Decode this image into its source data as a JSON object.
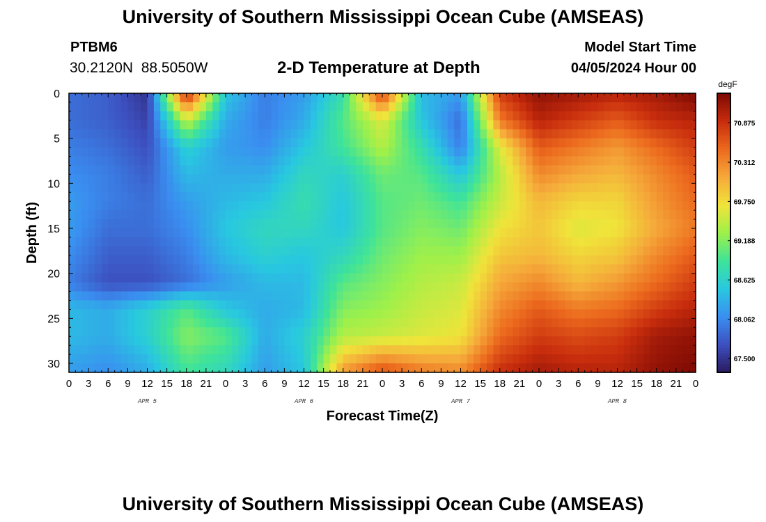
{
  "header": {
    "title": "University of Southern Mississippi Ocean Cube (AMSEAS)",
    "station_id": "PTBM6",
    "station_coords": "30.2120N  88.5050W",
    "plot_title": "2-D Temperature at Depth",
    "start_label": "Model Start Time",
    "start_value": "04/05/2024 Hour 00"
  },
  "footer": {
    "title": "University of Southern Mississippi Ocean Cube (AMSEAS)"
  },
  "chart_data": {
    "type": "heatmap",
    "title": "2-D Temperature at Depth",
    "xlabel": "Forecast Time(Z)",
    "ylabel": "Depth (ft)",
    "x_unit": "hours since 04/05/2024 Hour 00",
    "x_range": [
      0,
      96
    ],
    "y_range": [
      0,
      31
    ],
    "y_inverted": true,
    "x_ticks": [
      0,
      3,
      6,
      9,
      12,
      15,
      18,
      21,
      24,
      27,
      30,
      33,
      36,
      39,
      42,
      45,
      48,
      51,
      54,
      57,
      60,
      63,
      66,
      69,
      72,
      75,
      78,
      81,
      84,
      87,
      90,
      93,
      96
    ],
    "x_tick_labels": [
      "0",
      "3",
      "6",
      "9",
      "12",
      "15",
      "18",
      "21",
      "0",
      "3",
      "6",
      "9",
      "12",
      "15",
      "18",
      "21",
      "0",
      "3",
      "6",
      "9",
      "12",
      "15",
      "18",
      "21",
      "0",
      "3",
      "6",
      "9",
      "12",
      "15",
      "18",
      "21",
      "0"
    ],
    "date_labels": [
      {
        "x": 12,
        "label": "APR 5"
      },
      {
        "x": 36,
        "label": "APR 6"
      },
      {
        "x": 60,
        "label": "APR 7"
      },
      {
        "x": 84,
        "label": "APR 8"
      }
    ],
    "y_ticks": [
      0,
      5,
      10,
      15,
      20,
      25,
      30
    ],
    "y_tick_labels": [
      "0",
      "5",
      "10",
      "15",
      "20",
      "25",
      "30"
    ],
    "colorbar": {
      "unit": "degF",
      "min": 67.3,
      "max": 71.3,
      "ticks": [
        67.5,
        68.062,
        68.625,
        69.188,
        69.75,
        70.312,
        70.875
      ],
      "tick_labels": [
        "67.500",
        "68.062",
        "68.625",
        "69.188",
        "69.750",
        "70.312",
        "70.875"
      ],
      "colors": [
        "#2a1a5e",
        "#3d4fbf",
        "#3a8ef0",
        "#28c8e0",
        "#3ee39a",
        "#9ef04a",
        "#f0e43a",
        "#f5a93a",
        "#ec6a1e",
        "#c82d0d",
        "#7e0a04"
      ]
    },
    "grid": false,
    "depth_levels": [
      0,
      3,
      6,
      9,
      12,
      15,
      18,
      21,
      24,
      27,
      31
    ],
    "time_knots": [
      0,
      6,
      12,
      18,
      24,
      30,
      36,
      42,
      48,
      54,
      60,
      66,
      72,
      78,
      84,
      90,
      96
    ],
    "values": [
      [
        67.9,
        67.8,
        67.5,
        71.0,
        68.5,
        68.0,
        68.2,
        68.8,
        70.8,
        68.4,
        68.2,
        70.8,
        71.2,
        71.1,
        71.0,
        71.1,
        71.3
      ],
      [
        67.9,
        67.8,
        67.6,
        69.5,
        68.3,
        68.0,
        68.3,
        69.0,
        69.6,
        68.5,
        67.9,
        70.4,
        71.0,
        70.8,
        70.6,
        70.9,
        71.0
      ],
      [
        68.0,
        67.9,
        67.7,
        68.6,
        68.2,
        68.1,
        68.5,
        68.9,
        69.4,
        68.8,
        68.0,
        69.6,
        70.6,
        70.4,
        70.2,
        70.5,
        70.8
      ],
      [
        68.1,
        68.0,
        67.8,
        68.4,
        68.3,
        68.3,
        68.7,
        68.6,
        69.1,
        69.0,
        68.5,
        69.4,
        70.3,
        70.1,
        70.0,
        70.3,
        70.6
      ],
      [
        68.2,
        68.0,
        67.9,
        68.2,
        68.4,
        68.5,
        68.8,
        68.5,
        69.0,
        69.1,
        68.9,
        69.5,
        70.0,
        69.8,
        69.8,
        70.2,
        70.5
      ],
      [
        68.2,
        67.9,
        67.9,
        68.1,
        68.5,
        68.7,
        68.7,
        68.5,
        69.0,
        69.2,
        69.1,
        69.7,
        69.9,
        69.6,
        69.7,
        70.1,
        70.4
      ],
      [
        68.1,
        67.8,
        67.8,
        68.0,
        68.4,
        68.6,
        68.5,
        68.7,
        69.1,
        69.3,
        69.3,
        69.9,
        70.0,
        69.8,
        69.9,
        70.3,
        70.6
      ],
      [
        68.0,
        67.7,
        67.7,
        67.9,
        68.2,
        68.4,
        68.4,
        69.0,
        69.2,
        69.4,
        69.5,
        70.1,
        70.3,
        70.0,
        70.2,
        70.5,
        70.8
      ],
      [
        68.4,
        68.3,
        68.6,
        69.0,
        68.5,
        68.3,
        68.4,
        69.2,
        69.3,
        69.5,
        69.6,
        70.3,
        70.6,
        70.4,
        70.5,
        70.8,
        71.0
      ],
      [
        68.4,
        68.3,
        68.6,
        69.2,
        69.0,
        68.3,
        68.6,
        69.4,
        69.5,
        69.6,
        69.7,
        70.5,
        70.8,
        70.7,
        70.8,
        71.1,
        71.2
      ],
      [
        68.2,
        68.1,
        68.3,
        68.9,
        68.7,
        68.2,
        68.5,
        70.2,
        70.7,
        70.4,
        70.3,
        70.9,
        71.1,
        71.0,
        71.0,
        71.2,
        71.3
      ]
    ]
  }
}
